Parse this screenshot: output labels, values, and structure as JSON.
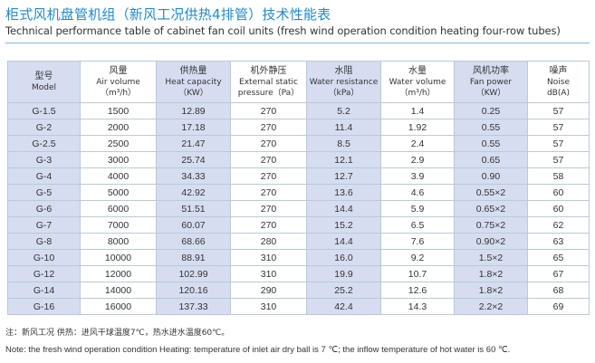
{
  "title_cn": "柜式风机盘管机组（新风工况供热4排管）技术性能表",
  "title_en": "Technical performance table of cabinet fan coil units (fresh wind operation condition heating four-row tubes)",
  "accent_color": "#1e8ad0",
  "tint_color": "#d6ddf0",
  "headers": [
    {
      "cn": "型号",
      "en": "Model",
      "unit": ""
    },
    {
      "cn": "风量",
      "en": "Air volume",
      "unit": "（m³/h）"
    },
    {
      "cn": "供热量",
      "en": "Heat capacity",
      "unit": "（KW）"
    },
    {
      "cn": "机外静压",
      "en": "External static",
      "unit": "pressure（Pa）"
    },
    {
      "cn": "水阻",
      "en": "Water resistance",
      "unit": "（kPa）"
    },
    {
      "cn": "水量",
      "en": "Water volume",
      "unit": "（m³/h）"
    },
    {
      "cn": "风机功率",
      "en": "Fan power",
      "unit": "（KW）"
    },
    {
      "cn": "噪声",
      "en": "Noise",
      "unit": "dB(A)"
    }
  ],
  "rows": [
    [
      "G-1.5",
      "1500",
      "12.89",
      "270",
      "5.2",
      "1.4",
      "0.25",
      "57"
    ],
    [
      "G-2",
      "2000",
      "17.18",
      "270",
      "11.4",
      "1.92",
      "0.55",
      "57"
    ],
    [
      "G-2.5",
      "2500",
      "21.47",
      "270",
      "8.5",
      "2.4",
      "0.55",
      "57"
    ],
    [
      "G-3",
      "3000",
      "25.74",
      "270",
      "12.1",
      "2.9",
      "0.65",
      "57"
    ],
    [
      "G-4",
      "4000",
      "34.33",
      "270",
      "12.7",
      "3.9",
      "0.90",
      "58"
    ],
    [
      "G-5",
      "5000",
      "42.92",
      "270",
      "13.6",
      "4.6",
      "0.55×2",
      "60"
    ],
    [
      "G-6",
      "6000",
      "51.51",
      "270",
      "14.4",
      "5.9",
      "0.65×2",
      "60"
    ],
    [
      "G-7",
      "7000",
      "60.07",
      "270",
      "15.2",
      "6.5",
      "0.75×2",
      "62"
    ],
    [
      "G-8",
      "8000",
      "68.66",
      "280",
      "14.4",
      "7.6",
      "0.90×2",
      "63"
    ],
    [
      "G-10",
      "10000",
      "88.91",
      "310",
      "16.0",
      "9.2",
      "1.5×2",
      "65"
    ],
    [
      "G-12",
      "12000",
      "102.99",
      "310",
      "19.9",
      "10.7",
      "1.8×2",
      "67"
    ],
    [
      "G-14",
      "14000",
      "120.16",
      "290",
      "25.2",
      "12.6",
      "1.8×2",
      "68"
    ],
    [
      "G-16",
      "16000",
      "137.33",
      "310",
      "42.4",
      "14.3",
      "2.2×2",
      "69"
    ]
  ],
  "note_cn": "注：新风工况 供热：进风干球温度7℃，热水进水温度60℃。",
  "note_en": "Note: the fresh wind operation condition  Heating: temperature of inlet air dry ball is 7 ℃; the inflow temperature of hot water is 60 ℃."
}
